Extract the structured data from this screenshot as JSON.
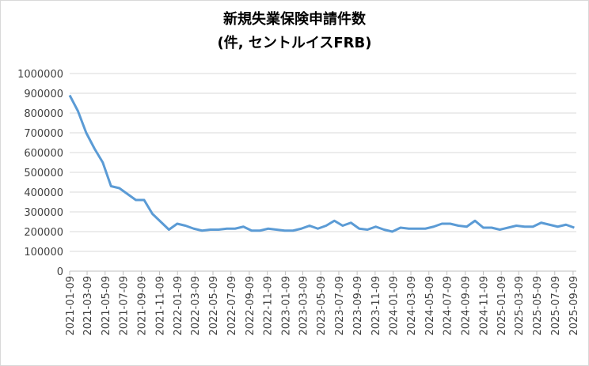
{
  "chart_data": {
    "type": "line",
    "title": "新規失業保険申請件数",
    "subtitle": "(件, セントルイスFRB)",
    "x": [
      "2021-01-09",
      "2021-02-06",
      "2021-03-06",
      "2021-04-03",
      "2021-05-01",
      "2021-05-29",
      "2021-06-26",
      "2021-07-24",
      "2021-08-21",
      "2021-09-18",
      "2021-10-16",
      "2021-11-13",
      "2021-12-11",
      "2022-01-08",
      "2022-02-05",
      "2022-03-05",
      "2022-04-02",
      "2022-04-30",
      "2022-05-28",
      "2022-06-25",
      "2022-07-23",
      "2022-08-20",
      "2022-09-17",
      "2022-10-15",
      "2022-11-12",
      "2022-12-10",
      "2023-01-07",
      "2023-02-04",
      "2023-03-04",
      "2023-04-01",
      "2023-04-29",
      "2023-05-27",
      "2023-06-24",
      "2023-07-22",
      "2023-08-19",
      "2023-09-16",
      "2023-10-14",
      "2023-11-11",
      "2023-12-09",
      "2024-01-06",
      "2024-02-03",
      "2024-03-02",
      "2024-03-30",
      "2024-04-27",
      "2024-05-25",
      "2024-06-22",
      "2024-07-20",
      "2024-08-17",
      "2024-09-14",
      "2024-10-12",
      "2024-11-09",
      "2024-12-07",
      "2025-01-04",
      "2025-02-01",
      "2025-03-01",
      "2025-03-29",
      "2025-04-26",
      "2025-05-24",
      "2025-06-21",
      "2025-07-19",
      "2025-08-16",
      "2025-09-13"
    ],
    "series": [
      {
        "name": "新規失業保険申請件数",
        "color": "#5b9bd5",
        "values": [
          890000,
          810000,
          700000,
          620000,
          550000,
          430000,
          420000,
          390000,
          360000,
          360000,
          290000,
          250000,
          210000,
          240000,
          230000,
          215000,
          205000,
          210000,
          210000,
          215000,
          215000,
          225000,
          205000,
          205000,
          215000,
          210000,
          205000,
          205000,
          215000,
          230000,
          215000,
          230000,
          255000,
          230000,
          245000,
          215000,
          210000,
          225000,
          210000,
          200000,
          220000,
          215000,
          215000,
          215000,
          225000,
          240000,
          240000,
          230000,
          225000,
          255000,
          220000,
          220000,
          210000,
          220000,
          230000,
          225000,
          225000,
          245000,
          235000,
          225000,
          235000,
          220000
        ]
      }
    ],
    "xlim": [
      "2021-01-09",
      "2025-09-20"
    ],
    "xticks": [
      "2021-01-09",
      "2021-03-09",
      "2021-05-09",
      "2021-07-09",
      "2021-09-09",
      "2021-11-09",
      "2022-01-09",
      "2022-03-09",
      "2022-05-09",
      "2022-07-09",
      "2022-09-09",
      "2022-11-09",
      "2023-01-09",
      "2023-03-09",
      "2023-05-09",
      "2023-07-09",
      "2023-09-09",
      "2023-11-09",
      "2024-01-09",
      "2024-03-09",
      "2024-05-09",
      "2024-07-09",
      "2024-09-09",
      "2024-11-09",
      "2025-01-09",
      "2025-03-09",
      "2025-05-09",
      "2025-07-09",
      "2025-09-09"
    ],
    "ylim": [
      0,
      1000000
    ],
    "yticks": [
      0,
      100000,
      200000,
      300000,
      400000,
      500000,
      600000,
      700000,
      800000,
      900000,
      1000000
    ],
    "grid": true
  }
}
